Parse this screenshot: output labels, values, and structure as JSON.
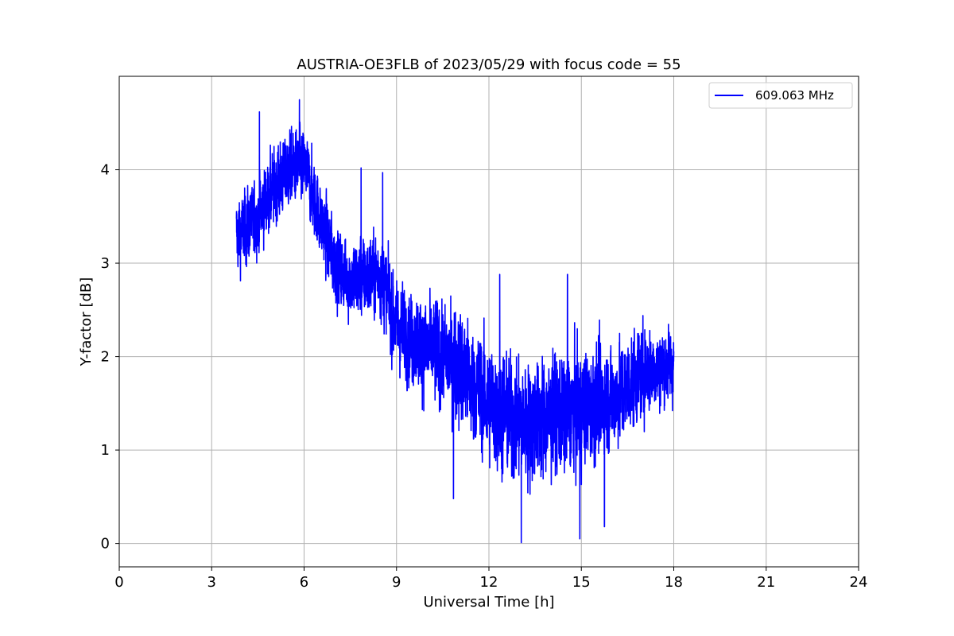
{
  "chart_data": {
    "type": "line",
    "title": "AUSTRIA-OE3FLB of 2023/05/29 with focus code = 55",
    "xlabel": "Universal Time [h]",
    "ylabel": "Y-factor [dB]",
    "xlim": [
      0,
      24
    ],
    "ylim": [
      -0.25,
      5.0
    ],
    "xticks": [
      0,
      3,
      6,
      9,
      12,
      15,
      18,
      21,
      24
    ],
    "yticks": [
      0,
      1,
      2,
      3,
      4
    ],
    "grid": true,
    "legend_position": "top-right",
    "series": [
      {
        "name": "609.063 MHz",
        "color": "#0000ff",
        "x_range": [
          3.8,
          18.0
        ],
        "trend": [
          [
            3.8,
            3.3
          ],
          [
            4.5,
            3.5
          ],
          [
            5.0,
            3.8
          ],
          [
            5.5,
            4.0
          ],
          [
            6.0,
            4.05
          ],
          [
            6.5,
            3.5
          ],
          [
            7.0,
            3.0
          ],
          [
            7.5,
            2.8
          ],
          [
            8.0,
            2.85
          ],
          [
            8.5,
            2.9
          ],
          [
            9.0,
            2.3
          ],
          [
            10.0,
            2.1
          ],
          [
            11.0,
            1.9
          ],
          [
            12.0,
            1.5
          ],
          [
            13.0,
            1.3
          ],
          [
            14.0,
            1.35
          ],
          [
            15.0,
            1.45
          ],
          [
            16.0,
            1.55
          ],
          [
            17.0,
            1.85
          ],
          [
            18.0,
            1.9
          ]
        ],
        "noise_amplitude": [
          [
            3.8,
            0.45
          ],
          [
            6.0,
            0.45
          ],
          [
            8.0,
            0.5
          ],
          [
            10.0,
            0.6
          ],
          [
            12.0,
            0.75
          ],
          [
            14.0,
            0.75
          ],
          [
            16.0,
            0.65
          ],
          [
            18.0,
            0.45
          ]
        ],
        "peaks": [
          [
            4.55,
            4.62
          ],
          [
            5.85,
            4.75
          ],
          [
            7.85,
            4.02
          ],
          [
            8.55,
            3.97
          ],
          [
            12.35,
            2.88
          ],
          [
            14.55,
            2.88
          ],
          [
            14.95,
            0.05
          ],
          [
            13.05,
            0.0
          ],
          [
            15.75,
            0.18
          ],
          [
            10.85,
            0.48
          ]
        ]
      }
    ]
  }
}
